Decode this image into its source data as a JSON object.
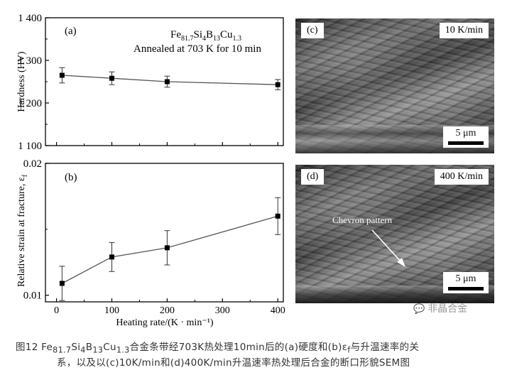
{
  "chart_data": [
    {
      "panel": "(a)",
      "type": "line",
      "ylabel": "Hardness (HV)",
      "ylim": [
        1100,
        1400
      ],
      "yticks": [
        "1 100",
        "1 200",
        "1 300",
        "1 400"
      ],
      "ytick_values": [
        1100,
        1200,
        1300,
        1400
      ],
      "xlim": [
        -20,
        410
      ],
      "x": [
        10,
        100,
        200,
        400
      ],
      "series": [
        {
          "values": [
            1265,
            1258,
            1250,
            1243
          ],
          "errors": [
            18,
            15,
            13,
            12
          ]
        }
      ],
      "annotation": {
        "composition": {
          "base": "Fe",
          "s1": "81.7",
          "e1": "Si",
          "s2": "4",
          "e2": "B",
          "s3": "13",
          "e3": "Cu",
          "s4": "1.3"
        },
        "line2": "Annealed at 703 K for 10 min"
      },
      "grid": false
    },
    {
      "panel": "(b)",
      "type": "line",
      "ylabel": "Relative strain at fracture, ε",
      "ylabel_sub": "f",
      "ylim": [
        0.0095,
        0.02
      ],
      "yticks": [
        "0.01",
        "0.02"
      ],
      "ytick_values": [
        0.01,
        0.02
      ],
      "xlim": [
        -20,
        410
      ],
      "x": [
        10,
        100,
        200,
        400
      ],
      "xticks": [
        "0",
        "100",
        "200",
        "300",
        "400"
      ],
      "xtick_values": [
        0,
        100,
        200,
        300,
        400
      ],
      "xlabel": "Heating rate/(K · min⁻¹)",
      "series": [
        {
          "values": [
            0.0109,
            0.0129,
            0.0136,
            0.016
          ],
          "errors": [
            0.0013,
            0.0011,
            0.0013,
            0.0014
          ]
        }
      ],
      "grid": false
    }
  ],
  "sem": {
    "c": {
      "panel": "(c)",
      "label": "10 K/min",
      "scale": "5 μm"
    },
    "d": {
      "panel": "(d)",
      "label": "400 K/min",
      "scale": "5 μm",
      "annotation": "Chevron pattern"
    }
  },
  "watermark": "非晶合金",
  "caption": {
    "prefix": "图12  Fe",
    "s1": "81.7",
    "e1": "Si",
    "s2": "4",
    "e2": "B",
    "s3": "13",
    "e3": "Cu",
    "s4": "1.3",
    "rest1": "合金条带经703K热处理10min后的(a)硬度和(b)ε",
    "sub_f": "f",
    "rest1b": "与升温速率的关",
    "line2": "系，以及以(c)10K/min和(d)400K/min升温速率热处理后合金的断口形貌SEM图"
  },
  "colors": {
    "line": "#555555",
    "marker": "#000000",
    "axis": "#000000"
  }
}
